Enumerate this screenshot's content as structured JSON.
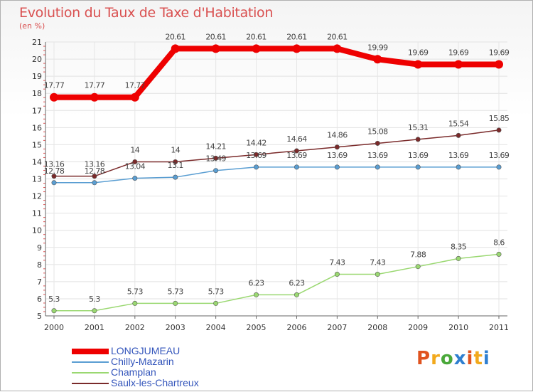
{
  "header": {
    "title": "Evolution du Taux de Taxe d'Habitation",
    "unit": "(en %)"
  },
  "logo": {
    "text": "Proxiti",
    "colors": [
      "#e0531f",
      "#f2a91c",
      "#4aa83a",
      "#2f7fd0",
      "#e0531f",
      "#f2a91c",
      "#2f7fd0"
    ]
  },
  "chart_data": {
    "type": "line",
    "title": "Evolution du Taux de Taxe d'Habitation",
    "ylabel": "(en %)",
    "xlabel": "",
    "x": [
      "2000",
      "2001",
      "2002",
      "2003",
      "2004",
      "2005",
      "2006",
      "2007",
      "2008",
      "2009",
      "2010",
      "2011"
    ],
    "ylim": [
      5,
      21
    ],
    "yticks": [
      "5",
      "6",
      "7",
      "8",
      "9",
      "10",
      "11",
      "12",
      "13",
      "14",
      "15",
      "16",
      "17",
      "18",
      "19",
      "20",
      "21"
    ],
    "grid": true,
    "legend_position": "bottom-left",
    "series": [
      {
        "name": "LONGJUMEAU",
        "color": "#ee0000",
        "values": [
          17.77,
          17.77,
          17.77,
          20.61,
          20.61,
          20.61,
          20.61,
          20.61,
          19.99,
          19.69,
          19.69,
          19.69
        ],
        "labels": [
          "17.77",
          "17.77",
          "17.77",
          "20.61",
          "20.61",
          "20.61",
          "20.61",
          "20.61",
          "19.99",
          "19.69",
          "19.69",
          "19.69"
        ]
      },
      {
        "name": "Chilly-Mazarin",
        "color": "#5a9ed2",
        "values": [
          12.78,
          12.78,
          13.04,
          13.1,
          13.49,
          13.69,
          13.69,
          13.69,
          13.69,
          13.69,
          13.69,
          13.69
        ],
        "labels": [
          "12.78",
          "12.78",
          "13.04",
          "13.1",
          "13.49",
          "13.69",
          "13.69",
          "13.69",
          "13.69",
          "13.69",
          "13.69",
          "13.69"
        ]
      },
      {
        "name": "Champlan",
        "color": "#9ad871",
        "values": [
          5.3,
          5.3,
          5.73,
          5.73,
          5.73,
          6.23,
          6.23,
          7.43,
          7.43,
          7.88,
          8.35,
          8.6
        ],
        "labels": [
          "5.3",
          "5.3",
          "5.73",
          "5.73",
          "5.73",
          "6.23",
          "6.23",
          "7.43",
          "7.43",
          "7.88",
          "8.35",
          "8.6"
        ]
      },
      {
        "name": "Saulx-les-Chartreux",
        "color": "#7a2a2a",
        "values": [
          13.16,
          13.16,
          14,
          14,
          14.21,
          14.42,
          14.64,
          14.86,
          15.08,
          15.31,
          15.54,
          15.85
        ],
        "labels": [
          "13.16",
          "13.16",
          "14",
          "14",
          "14.21",
          "14.42",
          "14.64",
          "14.86",
          "15.08",
          "15.31",
          "15.54",
          "15.85"
        ]
      }
    ]
  }
}
